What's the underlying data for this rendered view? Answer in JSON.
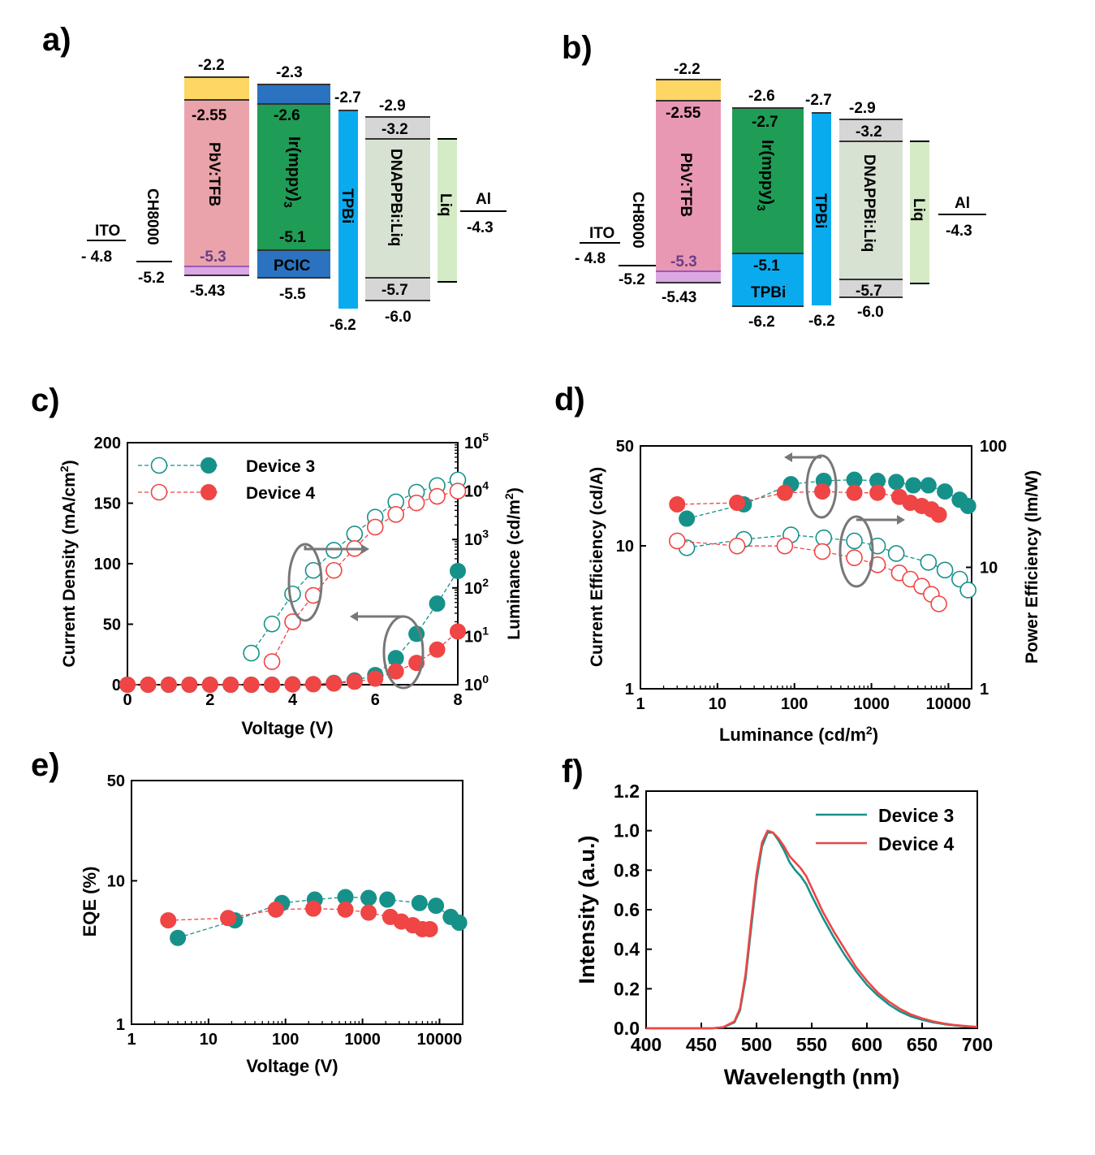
{
  "colors": {
    "device3": "#16918a",
    "device4": "#ef4545",
    "arrow": "#777777",
    "ellipse": "#777777",
    "axis": "#000000",
    "hole_violet": "#6a3d8a",
    "yellow": "#fdd663",
    "pink": "#eaa3aa",
    "violet": "#dba7e4",
    "blue": "#2b73c0",
    "green": "#1f9c55",
    "cyan": "#0aabee",
    "grey": "#d6d6d6",
    "sage": "#d8e2d3",
    "lightgreen": "#d4ebc6",
    "pink_b": "#e998b3"
  },
  "panels": {
    "a": {
      "label": "a)",
      "layers": [
        {
          "name": "ITO",
          "levels": [
            "- 4.8"
          ]
        },
        {
          "name": "CH8000",
          "levels": [
            "-5.2"
          ]
        },
        {
          "name": "PbV:TFB",
          "levels": [
            "-2.2",
            "-2.55",
            "-5.3",
            "-5.43"
          ]
        },
        {
          "name": "Ir(mppy)",
          "sub": "3",
          "levels": [
            "-2.3",
            "-2.6",
            "-5.1",
            "-5.5"
          ],
          "extra": "PCIC"
        },
        {
          "name": "TPBi",
          "levels": [
            "-2.7",
            "-6.2"
          ]
        },
        {
          "name": "DNAPPBi:Liq",
          "levels": [
            "-2.9",
            "-3.2",
            "-5.7",
            "-6.0"
          ]
        },
        {
          "name": "Liq",
          "levels": []
        },
        {
          "name": "Al",
          "levels": [
            "-4.3"
          ]
        }
      ]
    },
    "b": {
      "label": "b)",
      "layers": [
        {
          "name": "ITO",
          "levels": [
            "- 4.8"
          ]
        },
        {
          "name": "CH8000",
          "levels": [
            "-5.2"
          ]
        },
        {
          "name": "PbV:TFB",
          "levels": [
            "-2.2",
            "-2.55",
            "-5.3",
            "-5.43"
          ]
        },
        {
          "name": "Ir(mppy)",
          "sub": "3",
          "levels": [
            "-2.6",
            "-2.7",
            "-5.1",
            "-6.2"
          ],
          "extra": "TPBi"
        },
        {
          "name": "TPBi",
          "levels": [
            "-2.7",
            "-6.2"
          ]
        },
        {
          "name": "DNAPPBi:Liq",
          "levels": [
            "-2.9",
            "-3.2",
            "-5.7",
            "-6.0"
          ]
        },
        {
          "name": "Liq",
          "levels": []
        },
        {
          "name": "Al",
          "levels": [
            "-4.3"
          ]
        }
      ]
    },
    "c": {
      "label": "c)"
    },
    "d": {
      "label": "d)"
    },
    "e": {
      "label": "e)"
    },
    "f": {
      "label": "f)"
    }
  },
  "chart_data": [
    {
      "panel": "c",
      "type": "scatter",
      "xlabel": "Voltage (V)",
      "ylabel": "Current Density (mA/cm2)",
      "ylabel_parts": [
        "Current Density (mA/cm",
        "2",
        ")"
      ],
      "y2label_parts": [
        "Luminance (cd/m",
        "2",
        ")"
      ],
      "xlim": [
        0,
        8
      ],
      "ylim": [
        0,
        200
      ],
      "y2lim": [
        1,
        100000
      ],
      "y2scale": "log",
      "xticks": [
        "0",
        "2",
        "4",
        "6",
        "8"
      ],
      "yticks": [
        "0",
        "50",
        "100",
        "150",
        "200"
      ],
      "y2ticks": [
        {
          "base": "10",
          "exp": "0"
        },
        {
          "base": "10",
          "exp": "1"
        },
        {
          "base": "10",
          "exp": "2"
        },
        {
          "base": "10",
          "exp": "3"
        },
        {
          "base": "10",
          "exp": "4"
        },
        {
          "base": "10",
          "exp": "5"
        }
      ],
      "legend": "top-left",
      "legend_labels": [
        "Device 3",
        "Device 4"
      ],
      "series": [
        {
          "name": "Device 3",
          "axis": "left",
          "marker": "filled",
          "color_key": "device3",
          "x": [
            0,
            0.5,
            1,
            1.5,
            2,
            2.5,
            3,
            3.5,
            4,
            4.5,
            5,
            5.5,
            6,
            6.5,
            7,
            7.5,
            8
          ],
          "y": [
            0,
            0,
            0,
            0,
            0,
            0,
            0,
            0,
            0.3,
            0.5,
            1.5,
            3.5,
            8,
            22,
            42,
            67,
            94
          ]
        },
        {
          "name": "Device 4",
          "axis": "left",
          "marker": "filled",
          "color_key": "device4",
          "x": [
            0,
            0.5,
            1,
            1.5,
            2,
            2.5,
            3,
            3.5,
            4,
            4.5,
            5,
            5.5,
            6,
            6.5,
            7,
            7.5,
            8
          ],
          "y": [
            0,
            0,
            0,
            0,
            0,
            0,
            0,
            0,
            0.2,
            0.4,
            1,
            2.5,
            5,
            11,
            18,
            29,
            44
          ]
        },
        {
          "name": "Device 3",
          "axis": "right",
          "marker": "open",
          "color_key": "device3",
          "x": [
            3,
            3.5,
            4,
            4.5,
            5,
            5.5,
            6,
            6.5,
            7,
            7.5,
            8
          ],
          "y": [
            4.5,
            18,
            75,
            230,
            600,
            1300,
            2900,
            6000,
            9500,
            13000,
            17000
          ]
        },
        {
          "name": "Device 4",
          "axis": "right",
          "marker": "open",
          "color_key": "device4",
          "x": [
            3.5,
            4,
            4.5,
            5,
            5.5,
            6,
            6.5,
            7,
            7.5,
            8
          ],
          "y": [
            3,
            20,
            70,
            230,
            650,
            1800,
            3300,
            5700,
            7800,
            10000
          ]
        }
      ]
    },
    {
      "panel": "d",
      "type": "scatter",
      "xlabel_parts": [
        "Luminance (cd/m",
        "2",
        ")"
      ],
      "ylabel": "Current Efficiency (cd/A)",
      "y2label": "Power Efficiency (lm/W)",
      "xlim": [
        1,
        20000
      ],
      "xscale": "log",
      "ylim": [
        1,
        50
      ],
      "yscale": "log",
      "y2lim": [
        1,
        100
      ],
      "y2scale": "log",
      "xticks": [
        "1",
        "10",
        "100",
        "1000",
        "10000"
      ],
      "yticks": [
        "1",
        "10",
        "50"
      ],
      "y2ticks": [
        "1",
        "10",
        "100"
      ],
      "series": [
        {
          "name": "Device 3",
          "axis": "left",
          "marker": "filled",
          "color_key": "device3",
          "x": [
            4,
            22,
            90,
            240,
            600,
            1200,
            2100,
            3500,
            5500,
            9000,
            14000,
            18000
          ],
          "y": [
            15.5,
            19.5,
            27,
            28.5,
            29,
            28.5,
            28,
            26.5,
            26.5,
            24,
            21,
            19
          ]
        },
        {
          "name": "Device 4",
          "axis": "left",
          "marker": "filled",
          "color_key": "device4",
          "x": [
            3,
            18,
            75,
            230,
            600,
            1200,
            2300,
            3200,
            4500,
            6000,
            7500
          ],
          "y": [
            19.5,
            20,
            23.5,
            24,
            23.5,
            23.5,
            22,
            20,
            19,
            18,
            16.5
          ]
        },
        {
          "name": "Device 3",
          "axis": "right",
          "marker": "open",
          "color_key": "device3",
          "x": [
            4,
            22,
            90,
            240,
            600,
            1200,
            2100,
            5500,
            9000,
            14000,
            18000
          ],
          "y": [
            14.5,
            17,
            18.5,
            17.5,
            16.5,
            15,
            13,
            11,
            9.5,
            8,
            6.5
          ]
        },
        {
          "name": "Device 4",
          "axis": "right",
          "marker": "open",
          "color_key": "device4",
          "x": [
            3,
            18,
            75,
            230,
            600,
            1200,
            2300,
            3200,
            4500,
            6000,
            7500
          ],
          "y": [
            16.5,
            15,
            15,
            13.5,
            12,
            10.5,
            9,
            8,
            7,
            6,
            5
          ]
        }
      ]
    },
    {
      "panel": "e",
      "type": "scatter",
      "xlabel": "Voltage (V)",
      "ylabel": "EQE (%)",
      "xlim": [
        1,
        20000
      ],
      "xscale": "log",
      "ylim": [
        1,
        50
      ],
      "yscale": "log",
      "xticks": [
        "1",
        "10",
        "100",
        "1000",
        "10000"
      ],
      "yticks": [
        "1",
        "10",
        "50"
      ],
      "series": [
        {
          "name": "Device 3",
          "marker": "filled",
          "color_key": "device3",
          "x": [
            4,
            22,
            90,
            240,
            600,
            1200,
            2100,
            5500,
            9000,
            14000,
            18000
          ],
          "y": [
            4.0,
            5.3,
            7.0,
            7.4,
            7.7,
            7.6,
            7.4,
            7.0,
            6.7,
            5.6,
            5.1
          ]
        },
        {
          "name": "Device 4",
          "marker": "filled",
          "color_key": "device4",
          "x": [
            3,
            18,
            75,
            230,
            600,
            1200,
            2300,
            3200,
            4500,
            6000,
            7500
          ],
          "y": [
            5.3,
            5.5,
            6.3,
            6.4,
            6.3,
            6.0,
            5.6,
            5.2,
            4.9,
            4.6,
            4.6
          ]
        }
      ]
    },
    {
      "panel": "f",
      "type": "line",
      "xlabel": "Wavelength (nm)",
      "ylabel": "Intensity (a.u.)",
      "xlim": [
        400,
        700
      ],
      "ylim": [
        0,
        1.2
      ],
      "xticks": [
        "400",
        "450",
        "500",
        "550",
        "600",
        "650",
        "700"
      ],
      "yticks": [
        "0.0",
        "0.2",
        "0.4",
        "0.6",
        "0.8",
        "1.0",
        "1.2"
      ],
      "legend": "top-right",
      "legend_labels": [
        "Device 3",
        "Device 4"
      ],
      "series": [
        {
          "name": "Device 3",
          "color_key": "device3",
          "x": [
            400,
            460,
            470,
            480,
            485,
            490,
            495,
            500,
            505,
            510,
            515,
            520,
            525,
            530,
            535,
            540,
            545,
            550,
            560,
            570,
            580,
            590,
            600,
            610,
            620,
            630,
            640,
            650,
            660,
            670,
            680,
            690,
            700
          ],
          "y": [
            0,
            0.0,
            0.005,
            0.03,
            0.09,
            0.25,
            0.5,
            0.75,
            0.92,
            0.99,
            0.99,
            0.95,
            0.9,
            0.84,
            0.8,
            0.77,
            0.73,
            0.67,
            0.56,
            0.46,
            0.37,
            0.29,
            0.22,
            0.165,
            0.12,
            0.085,
            0.06,
            0.043,
            0.03,
            0.021,
            0.014,
            0.009,
            0.006
          ]
        },
        {
          "name": "Device 4",
          "color_key": "device4",
          "x": [
            400,
            460,
            470,
            480,
            485,
            490,
            495,
            500,
            505,
            510,
            515,
            520,
            525,
            530,
            535,
            540,
            545,
            550,
            560,
            570,
            580,
            590,
            600,
            610,
            620,
            630,
            640,
            650,
            660,
            670,
            680,
            690,
            700
          ],
          "y": [
            0,
            0.0,
            0.006,
            0.035,
            0.1,
            0.27,
            0.53,
            0.78,
            0.94,
            1.0,
            0.99,
            0.96,
            0.92,
            0.87,
            0.84,
            0.81,
            0.77,
            0.71,
            0.59,
            0.49,
            0.4,
            0.31,
            0.24,
            0.18,
            0.135,
            0.098,
            0.07,
            0.05,
            0.035,
            0.024,
            0.016,
            0.011,
            0.007
          ]
        }
      ]
    }
  ]
}
